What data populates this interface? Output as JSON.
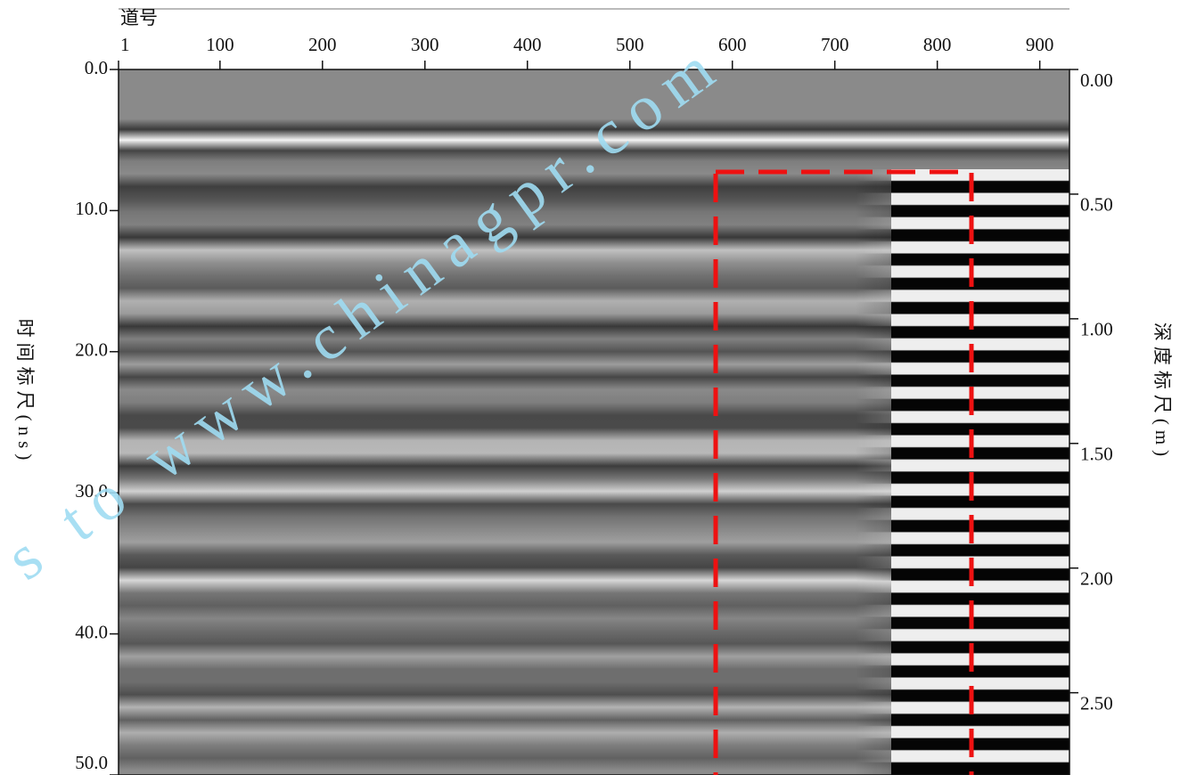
{
  "chart_data": {
    "type": "radargram",
    "xlabel": "道号",
    "ylabel": "时间标尺(ns)",
    "y2label": "深度标尺(m)",
    "watermark": "s to www.chinagpr.com",
    "xlim": [
      1,
      929
    ],
    "xticks": [
      1,
      100,
      200,
      300,
      400,
      500,
      600,
      700,
      800,
      900
    ],
    "ylim": [
      0,
      50
    ],
    "yticks": [
      {
        "value": 0,
        "label": "0.0"
      },
      {
        "value": 10,
        "label": "10.0"
      },
      {
        "value": 20,
        "label": "20.0"
      },
      {
        "value": 30,
        "label": "30.0"
      },
      {
        "value": 40,
        "label": "40.0"
      },
      {
        "value": 50,
        "label": "50.0"
      }
    ],
    "y2lim": [
      0,
      2.83
    ],
    "y2ticks": [
      {
        "value": 0,
        "label": "0.00"
      },
      {
        "value": 0.5,
        "label": "0.50"
      },
      {
        "value": 1,
        "label": "1.00"
      },
      {
        "value": 1.5,
        "label": "1.50"
      },
      {
        "value": 2,
        "label": "2.00"
      },
      {
        "value": 2.5,
        "label": "2.50"
      }
    ],
    "highlight_color": "#ee1111"
  }
}
